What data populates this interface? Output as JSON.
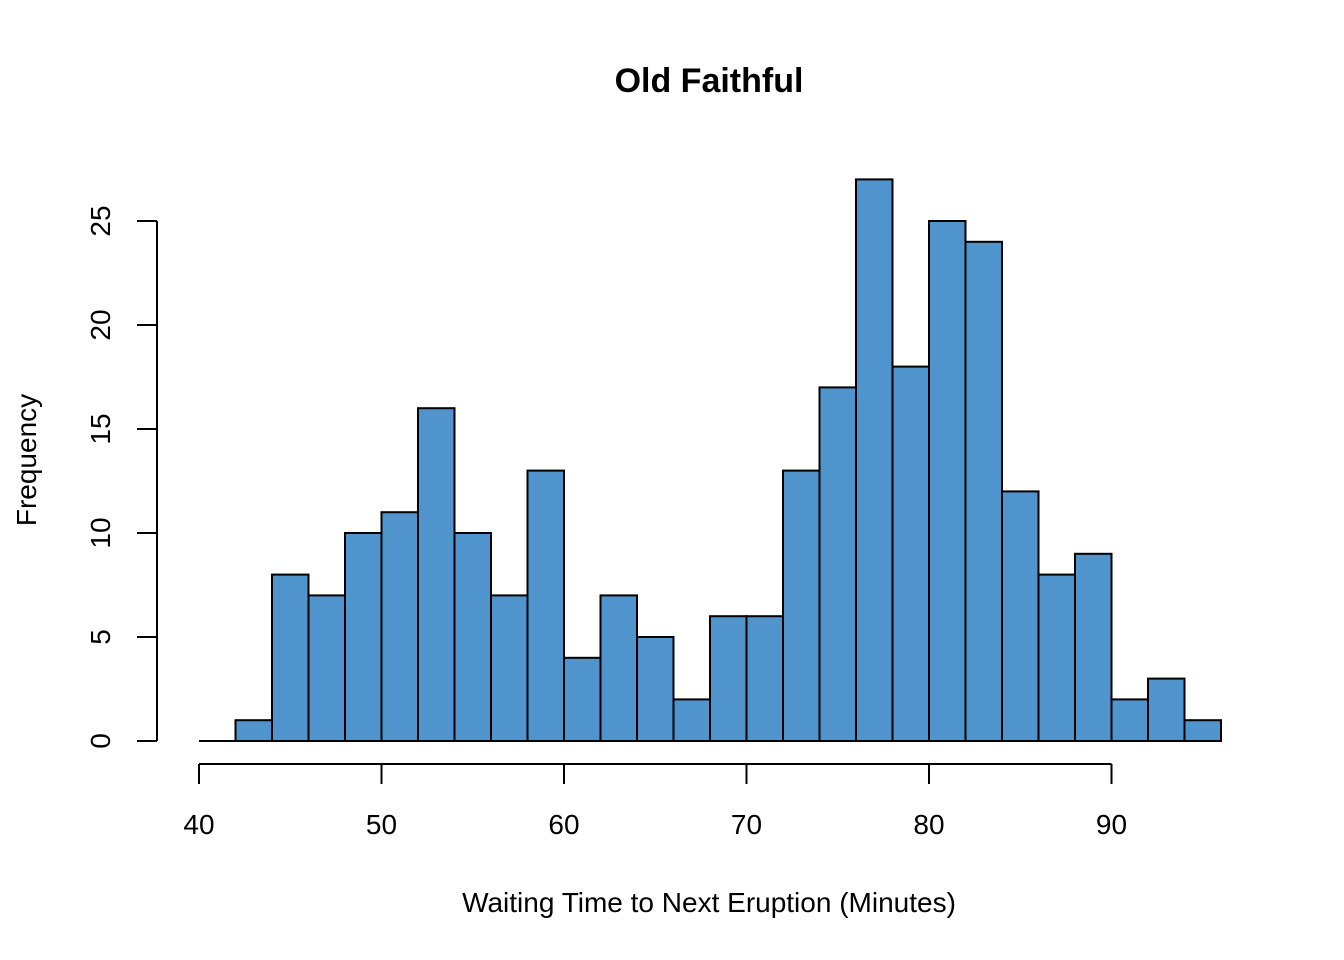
{
  "chart_data": {
    "type": "bar",
    "title": "Old Faithful",
    "xlabel": "Waiting Time to Next Eruption (Minutes)",
    "ylabel": "Frequency",
    "bin_width": 2,
    "bin_edges": [
      40,
      42,
      44,
      46,
      48,
      50,
      52,
      54,
      56,
      58,
      60,
      62,
      64,
      66,
      68,
      70,
      72,
      74,
      76,
      78,
      80,
      82,
      84,
      86,
      88,
      90,
      92,
      94,
      96
    ],
    "values": [
      0,
      1,
      8,
      7,
      10,
      11,
      16,
      10,
      7,
      13,
      4,
      7,
      5,
      2,
      6,
      6,
      13,
      17,
      27,
      18,
      25,
      24,
      12,
      8,
      9,
      2,
      3,
      1
    ],
    "xlim": [
      40,
      96
    ],
    "ylim": [
      0,
      27
    ],
    "x_ticks": [
      40,
      50,
      60,
      70,
      80,
      90
    ],
    "y_ticks": [
      0,
      5,
      10,
      15,
      20,
      25
    ],
    "bar_color": "#4f94cd",
    "grid": false,
    "legend": "none"
  }
}
